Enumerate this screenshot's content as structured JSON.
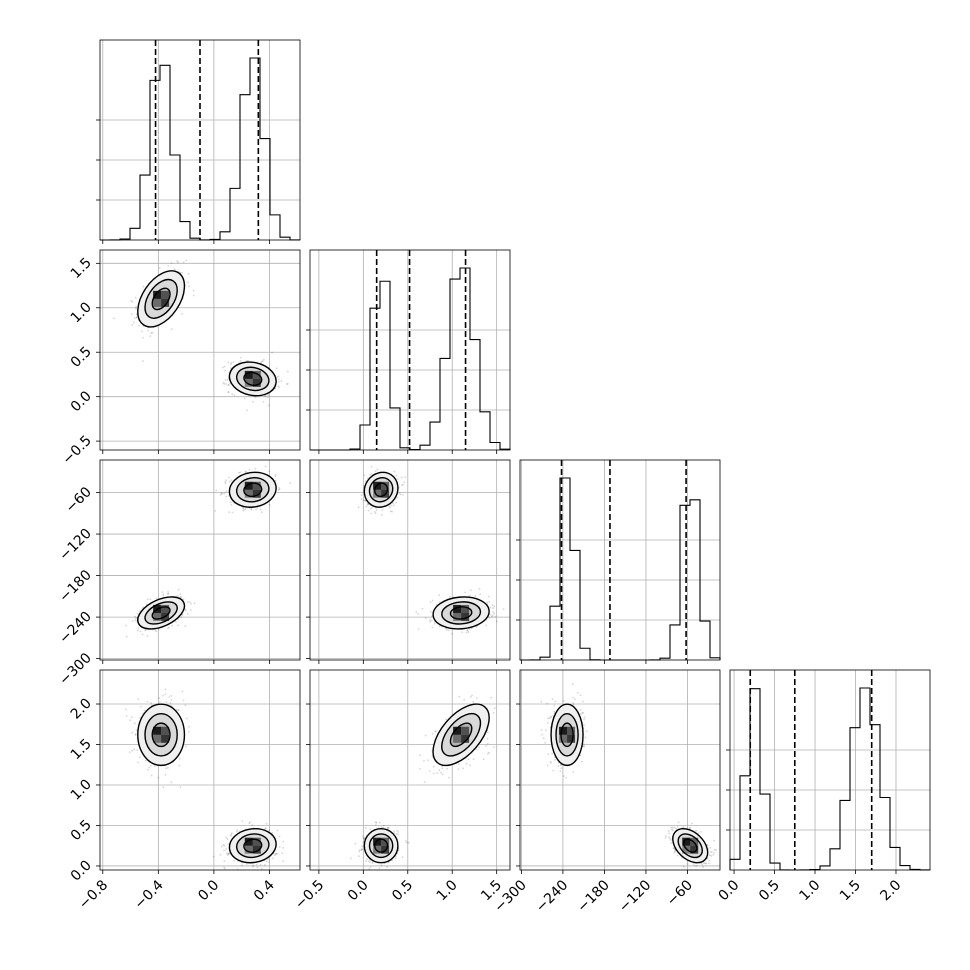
{
  "chart_data": {
    "type": "corner",
    "params": [
      {
        "range": [
          -0.82,
          0.62
        ],
        "ticks": [
          -0.8,
          -0.4,
          0.0,
          0.4
        ],
        "tick_labels": [
          "−0.8",
          "−0.4",
          "0.0",
          "0.4"
        ],
        "modes": [
          {
            "mu": -0.38,
            "sigma": 0.08
          },
          {
            "mu": 0.28,
            "sigma": 0.08
          }
        ],
        "quantiles": [
          -0.42,
          -0.1,
          0.32
        ]
      },
      {
        "range": [
          -0.6,
          1.65
        ],
        "ticks": [
          -0.5,
          0.0,
          0.5,
          1.0,
          1.5
        ],
        "tick_labels": [
          "−0.5",
          "0.0",
          "0.5",
          "1.0",
          "1.5"
        ],
        "modes": [
          {
            "mu": 0.2,
            "sigma": 0.09
          },
          {
            "mu": 1.1,
            "sigma": 0.15
          }
        ],
        "quantiles": [
          0.15,
          0.52,
          1.15
        ]
      },
      {
        "range": [
          -302,
          -13
        ],
        "ticks": [
          -300,
          -240,
          -180,
          -120,
          -60
        ],
        "tick_labels": [
          "−300",
          "−240",
          "−180",
          "−120",
          "−60"
        ],
        "modes": [
          {
            "mu": -234,
            "sigma": 11
          },
          {
            "mu": -56,
            "sigma": 12
          }
        ],
        "quantiles": [
          -242,
          -172,
          -62
        ]
      },
      {
        "range": [
          -0.05,
          2.42
        ],
        "ticks": [
          0.0,
          0.5,
          1.0,
          1.5,
          2.0
        ],
        "tick_labels": [
          "0.0",
          "0.5",
          "1.0",
          "1.5",
          "2.0"
        ],
        "modes": [
          {
            "mu": 0.25,
            "sigma": 0.1
          },
          {
            "mu": 1.62,
            "sigma": 0.18
          }
        ],
        "quantiles": [
          0.2,
          0.75,
          1.7
        ]
      }
    ],
    "pairs": [
      {
        "x": 0,
        "y": 1,
        "clusters": [
          {
            "mx": -0.38,
            "sx": 0.08,
            "my": 1.1,
            "sy": 0.15,
            "rho": 0.45
          },
          {
            "mx": 0.28,
            "sx": 0.08,
            "my": 0.2,
            "sy": 0.09,
            "rho": -0.15
          }
        ]
      },
      {
        "x": 0,
        "y": 2,
        "clusters": [
          {
            "mx": 0.28,
            "sx": 0.08,
            "my": -56,
            "sy": 12,
            "rho": 0.1
          },
          {
            "mx": -0.38,
            "sx": 0.08,
            "my": -234,
            "sy": 11,
            "rho": 0.45
          }
        ]
      },
      {
        "x": 1,
        "y": 2,
        "clusters": [
          {
            "mx": 0.2,
            "sx": 0.09,
            "my": -56,
            "sy": 12,
            "rho": 0.1
          },
          {
            "mx": 1.1,
            "sx": 0.15,
            "my": -234,
            "sy": 11,
            "rho": 0.1
          }
        ]
      },
      {
        "x": 0,
        "y": 3,
        "clusters": [
          {
            "mx": -0.38,
            "sx": 0.08,
            "my": 1.62,
            "sy": 0.18,
            "rho": 0.0
          },
          {
            "mx": 0.28,
            "sx": 0.08,
            "my": 0.25,
            "sy": 0.1,
            "rho": 0.1
          }
        ]
      },
      {
        "x": 1,
        "y": 3,
        "clusters": [
          {
            "mx": 0.2,
            "sx": 0.09,
            "my": 0.25,
            "sy": 0.1,
            "rho": 0.0
          },
          {
            "mx": 1.1,
            "sx": 0.15,
            "my": 1.62,
            "sy": 0.18,
            "rho": 0.55
          }
        ]
      },
      {
        "x": 2,
        "y": 3,
        "clusters": [
          {
            "mx": -234,
            "sx": 11,
            "my": 1.62,
            "sy": 0.18,
            "rho": 0.0
          },
          {
            "mx": -56,
            "sx": 12,
            "my": 0.25,
            "sy": 0.1,
            "rho": -0.4
          }
        ]
      }
    ],
    "contour_levels": [
      0.5,
      1.0,
      1.5
    ],
    "grid": true
  }
}
